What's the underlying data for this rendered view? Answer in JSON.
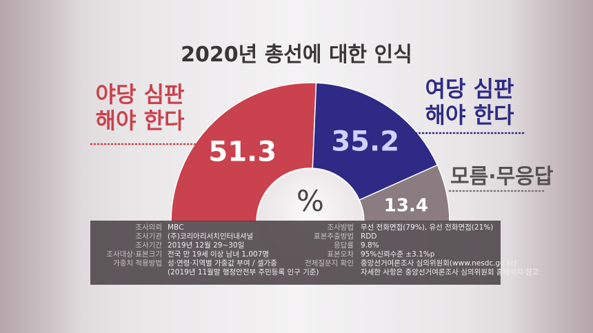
{
  "title": "2020년 총선에 대한 인식",
  "colors": {
    "opposition": "#c9424d",
    "government": "#2e2a86",
    "unknown": "#8a7c81",
    "inner": "#f3f0f1"
  },
  "chart_data": {
    "type": "pie",
    "title": "2020년 총선에 대한 인식",
    "unit": "%",
    "slices": [
      {
        "name": "야당 심판 해야 한다",
        "value": 51.3,
        "label": "51.3"
      },
      {
        "name": "여당 심판 해야 한다",
        "value": 35.2,
        "label": "35.2"
      },
      {
        "name": "모름·무응답",
        "value": 13.4,
        "label": "13.4"
      }
    ]
  },
  "labels": {
    "opposition_line1": "야당 심판",
    "opposition_line2": "해야 한다",
    "government_line1": "여당 심판",
    "government_line2": "해야 한다",
    "unknown": "모름·무응답"
  },
  "survey": {
    "left_keys": [
      "조사의뢰",
      "조사기관",
      "조사기간",
      "조사대상·표본크기",
      "가중치 적용방법",
      ""
    ],
    "left_values": [
      "MBC",
      "(주)코리아리서치인터내셔널",
      "2019년 12월 29~30일",
      "전국 만 19세 이상 남녀 1,007명",
      "성·연령·지역별 가중값 부여 / 셀가중",
      "(2019년 11월말 행정안전부 주민등록 인구 기준)"
    ],
    "right_keys": [
      "조사방법",
      "표본추출방법",
      "응답률",
      "표본오차",
      "전체질문지 확인",
      ""
    ],
    "right_values": [
      "무선 전화면접(79%), 유선 전화면접(21%)",
      "RDD",
      "9.8%",
      "95%신뢰수준 ±3.1%p",
      "중앙선거여론조사 심의위원회(www.nesdc.go.kr)",
      "자세한 사항은 중앙선거여론조사 심의위원회 홈페이지 참고"
    ]
  }
}
